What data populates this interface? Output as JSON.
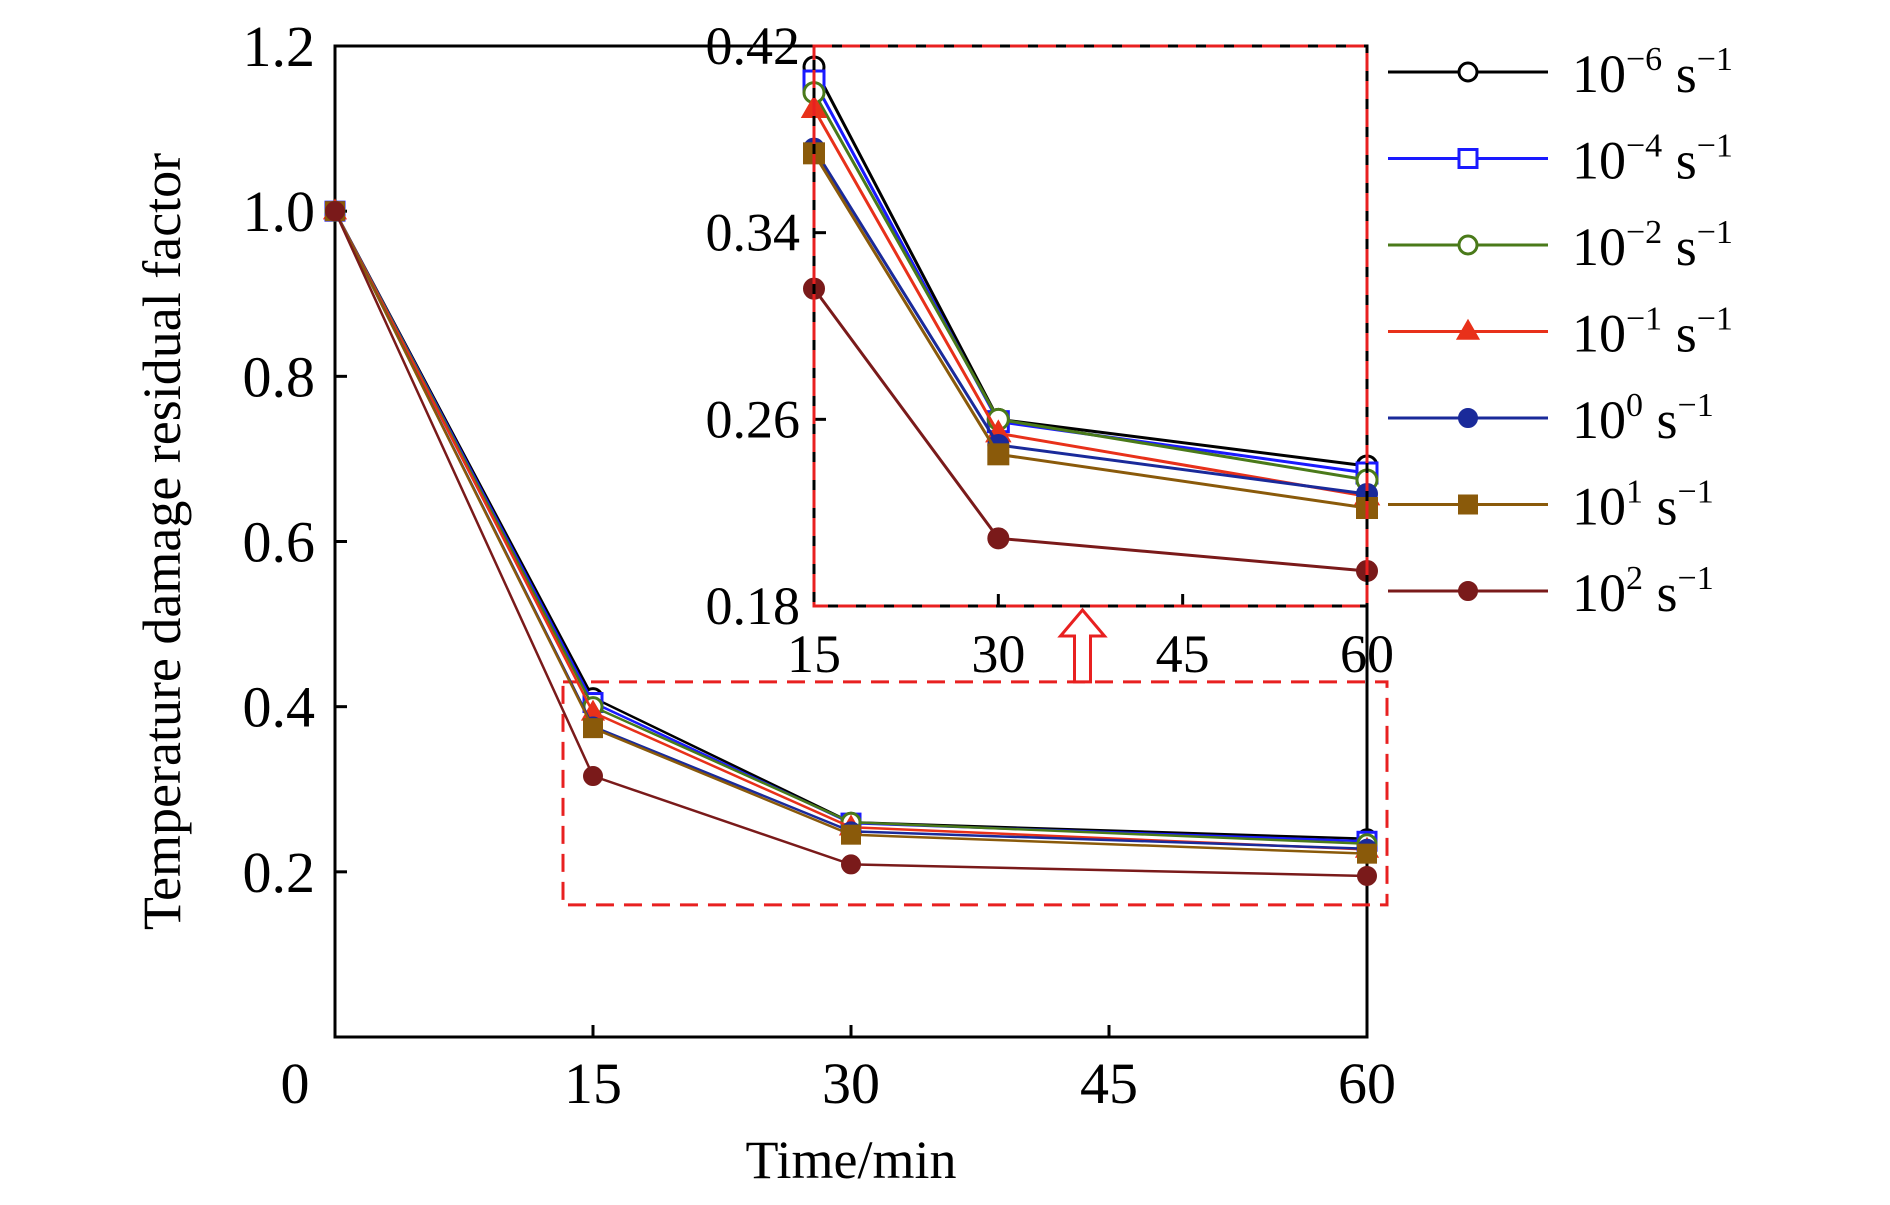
{
  "chart_data": {
    "type": "line",
    "title": "",
    "xlabel": "Time/min",
    "ylabel": "Temperature damage residual factor",
    "x": [
      0,
      15,
      30,
      60
    ],
    "xtick_labels": [
      "0",
      "15",
      "30",
      "45",
      "60"
    ],
    "ytick_labels": [
      "0.2",
      "0.4",
      "0.6",
      "0.8",
      "1.0",
      "1.2"
    ],
    "xlim": [
      0,
      60
    ],
    "ylim": [
      0,
      1.2
    ],
    "x_scale_note": "categorical-spacing: ticks 0,15,30,45,60 equally spaced",
    "grid": false,
    "legend_position": "right",
    "series": [
      {
        "name_base": "10",
        "name_exp": "−6",
        "name_unit": "s",
        "name_unit_exp": "−1",
        "color": "#000000",
        "marker": "circle-open",
        "values": [
          1.0,
          0.411,
          0.26,
          0.24
        ]
      },
      {
        "name_base": "10",
        "name_exp": "−4",
        "name_unit": "s",
        "name_unit_exp": "−1",
        "color": "#1a1aff",
        "marker": "square-open",
        "values": [
          1.0,
          0.405,
          0.259,
          0.237
        ]
      },
      {
        "name_base": "10",
        "name_exp": "−2",
        "name_unit": "s",
        "name_unit_exp": "−1",
        "color": "#4a7a1a",
        "marker": "circle-open",
        "values": [
          1.0,
          0.4,
          0.26,
          0.234
        ]
      },
      {
        "name_base": "10",
        "name_exp": "−1",
        "name_unit": "s",
        "name_unit_exp": "−1",
        "color": "#e8311a",
        "marker": "triangle-filled",
        "values": [
          1.0,
          0.393,
          0.254,
          0.227
        ]
      },
      {
        "name_base": "10",
        "name_exp": "0",
        "name_unit": "s",
        "name_unit_exp": "−1",
        "color": "#1a2a9a",
        "marker": "circle-filled",
        "values": [
          1.0,
          0.376,
          0.249,
          0.228
        ]
      },
      {
        "name_base": "10",
        "name_exp": "1",
        "name_unit": "s",
        "name_unit_exp": "−1",
        "color": "#8a5a0a",
        "marker": "square-filled",
        "values": [
          1.0,
          0.374,
          0.245,
          0.222
        ]
      },
      {
        "name_base": "10",
        "name_exp": "2",
        "name_unit": "s",
        "name_unit_exp": "−1",
        "color": "#7a1a1a",
        "marker": "circle-filled",
        "values": [
          1.0,
          0.316,
          0.209,
          0.195
        ]
      }
    ],
    "inset": {
      "xtick_labels": [
        "15",
        "30",
        "45",
        "60"
      ],
      "ytick_labels": [
        "0.18",
        "0.26",
        "0.34",
        "0.42"
      ],
      "xlim": [
        15,
        60
      ],
      "ylim": [
        0.18,
        0.42
      ],
      "border_color": "#e82020"
    },
    "zoom_region": {
      "xlim": [
        15,
        60
      ],
      "ylim": [
        0.16,
        0.43
      ],
      "border_color": "#e82020"
    }
  }
}
